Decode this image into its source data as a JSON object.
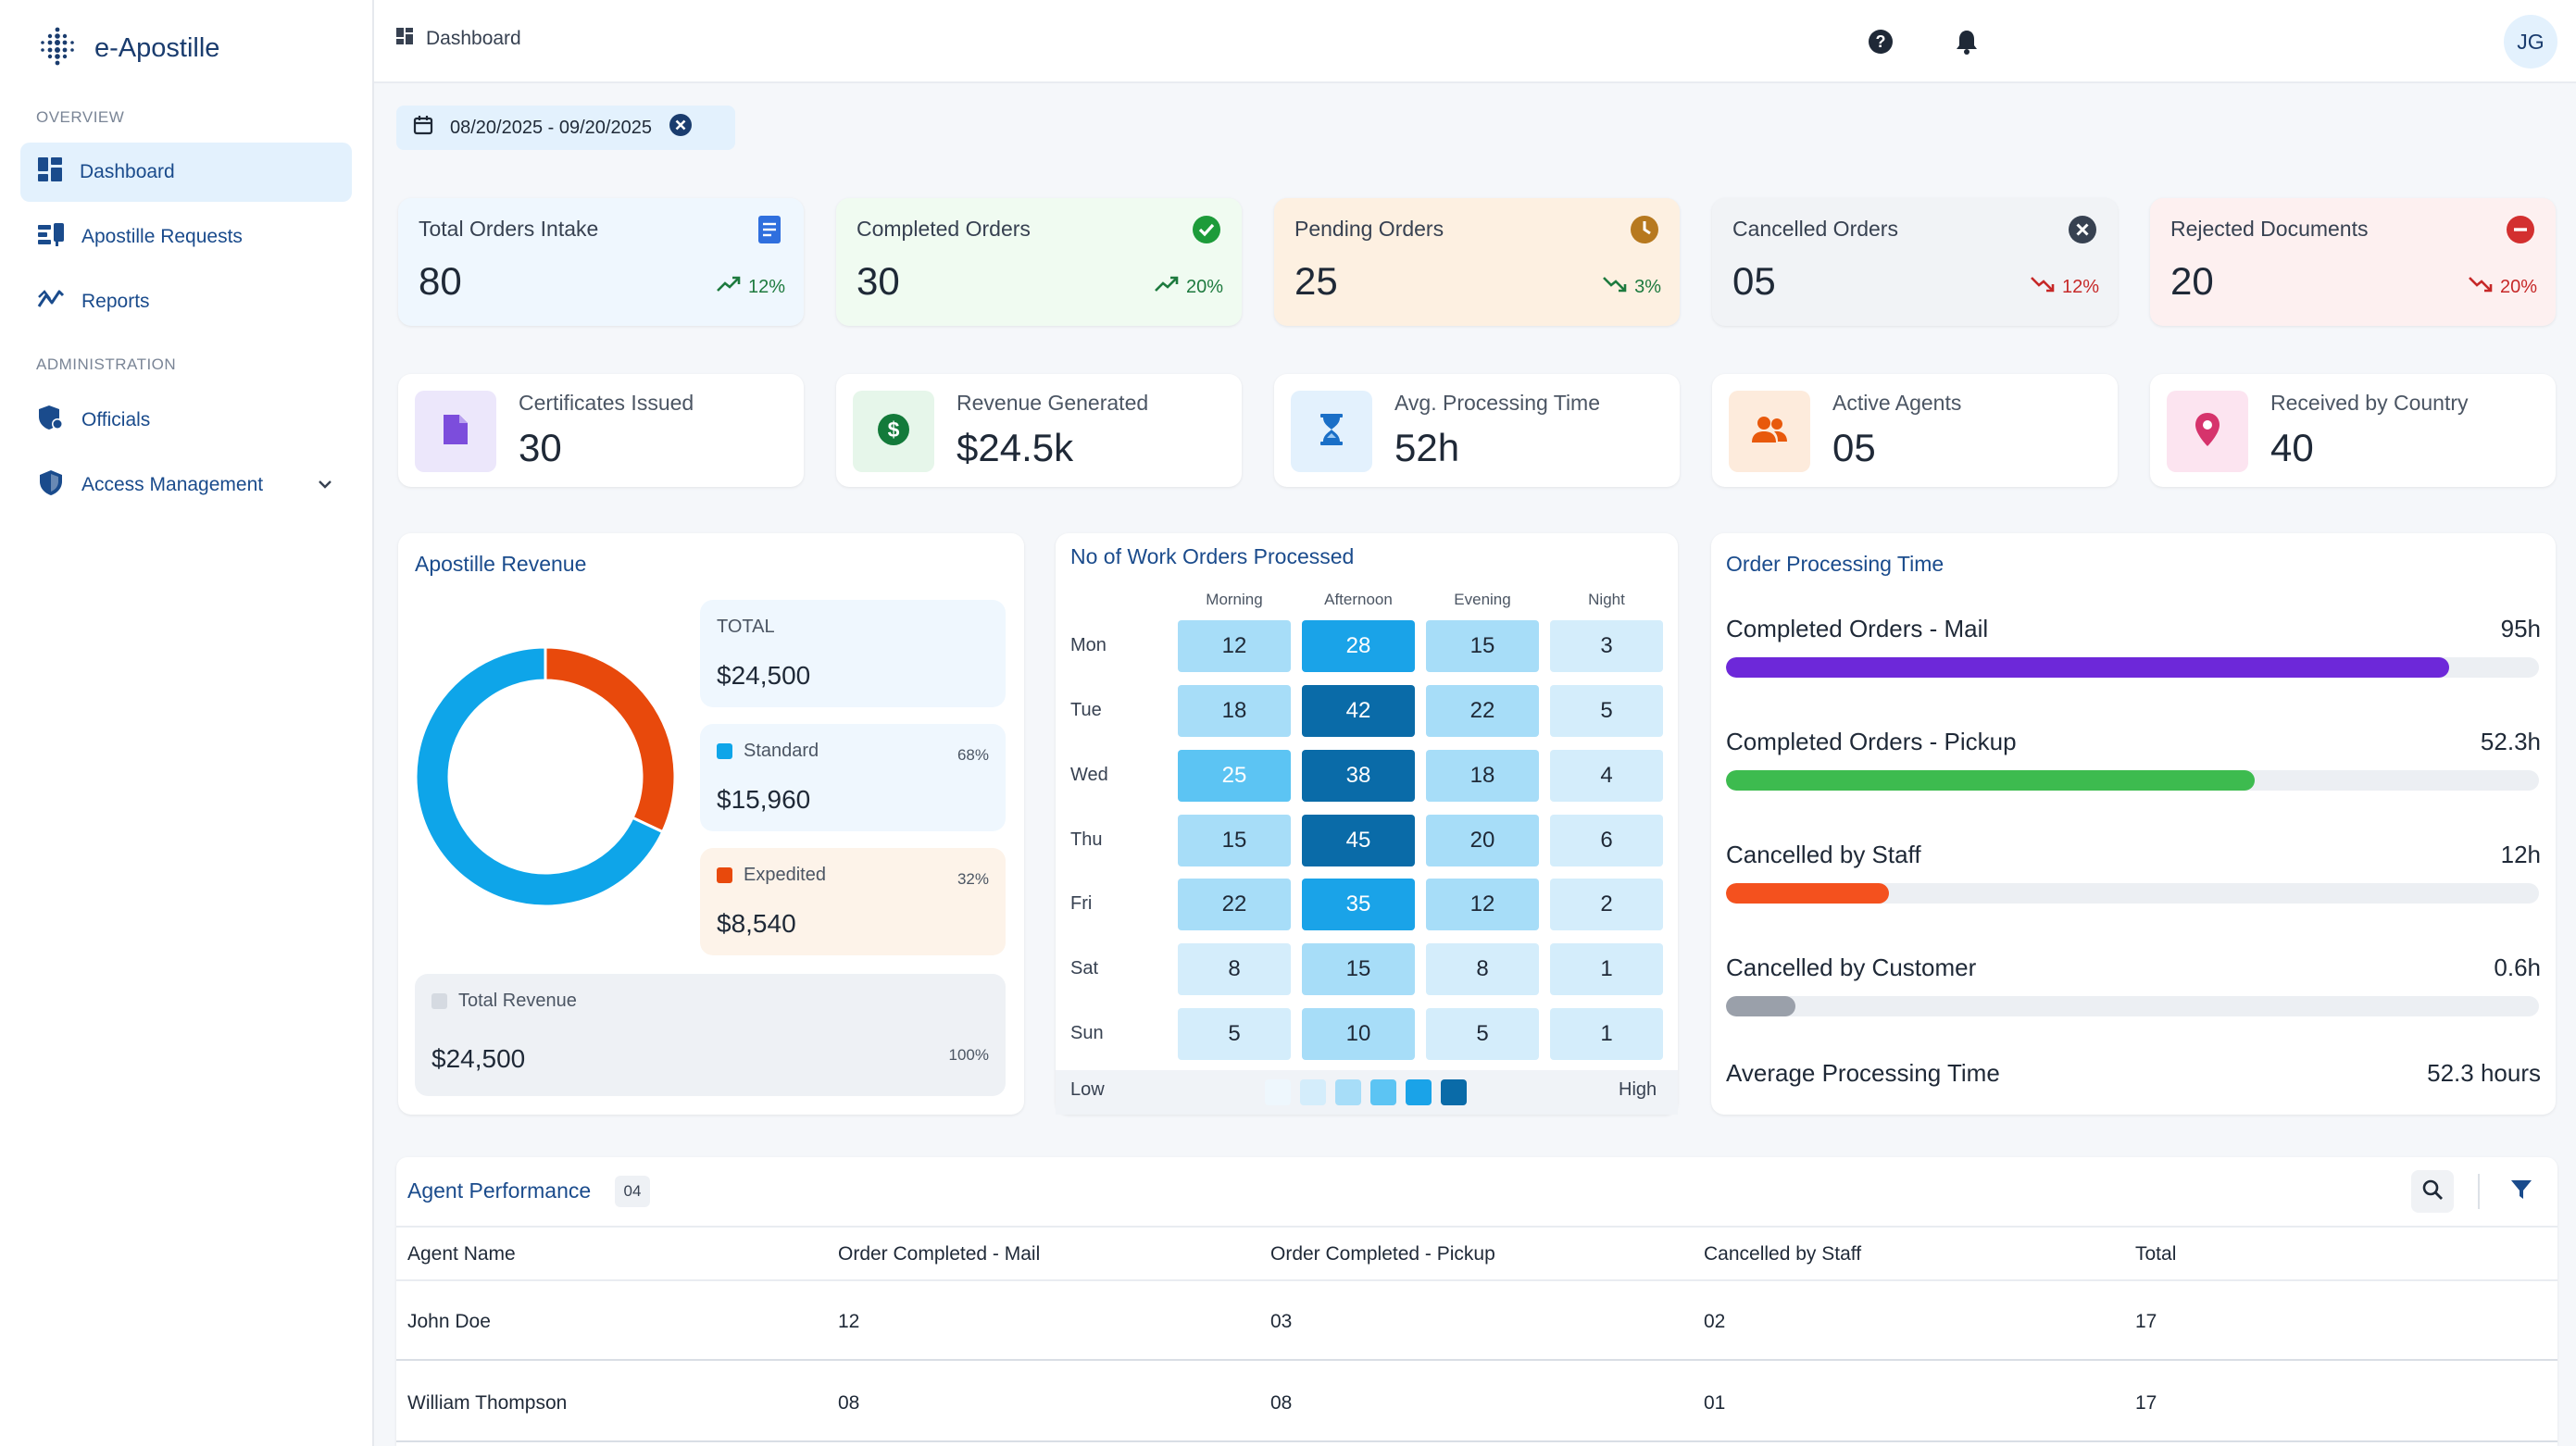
{
  "app": {
    "name": "e-Apostille"
  },
  "sidebar": {
    "sections": [
      {
        "label": "OVERVIEW"
      },
      {
        "label": "ADMINISTRATION"
      }
    ],
    "items": [
      {
        "label": "Dashboard",
        "icon": "dashboard-icon",
        "active": true
      },
      {
        "label": "Apostille Requests",
        "icon": "requests-icon"
      },
      {
        "label": "Reports",
        "icon": "reports-icon"
      },
      {
        "label": "Officials",
        "icon": "officials-icon"
      },
      {
        "label": "Access Management",
        "icon": "shield-icon"
      }
    ]
  },
  "topbar": {
    "breadcrumb": "Dashboard",
    "avatar_initials": "JG"
  },
  "date_range": "08/20/2025 - 09/20/2025",
  "stats": [
    {
      "label": "Total Orders Intake",
      "value": "80",
      "trend": "12%",
      "direction": "up",
      "bg": "#eff7fe",
      "icon_color": "#2f6fde"
    },
    {
      "label": "Completed Orders",
      "value": "30",
      "trend": "20%",
      "direction": "up",
      "bg": "#f0fbf1",
      "icon_color": "#1d9b3a"
    },
    {
      "label": "Pending Orders",
      "value": "25",
      "trend": "3%",
      "direction": "down-green",
      "bg": "#fdf0e1",
      "icon_color": "#b7791f"
    },
    {
      "label": "Cancelled Orders",
      "value": "05",
      "trend": "12%",
      "direction": "down",
      "bg": "#f1f3f6",
      "icon_color": "#374151"
    },
    {
      "label": "Rejected Documents",
      "value": "20",
      "trend": "20%",
      "direction": "down",
      "bg": "#fdf0f0",
      "icon_color": "#d32f2f"
    }
  ],
  "metrics": [
    {
      "label": "Certificates Issued",
      "value": "30",
      "tile_bg": "#ece7fb",
      "icon_color": "#7c4ddc",
      "icon": "document-icon"
    },
    {
      "label": "Revenue Generated",
      "value": "$24.5k",
      "tile_bg": "#e6f6ea",
      "icon_color": "#137a3a",
      "icon": "dollar-icon"
    },
    {
      "label": "Avg. Processing Time",
      "value": "52h",
      "tile_bg": "#e3f1fd",
      "icon_color": "#1a6fc7",
      "icon": "hourglass-icon"
    },
    {
      "label": "Active Agents",
      "value": "05",
      "tile_bg": "#fdebdc",
      "icon_color": "#e8590c",
      "icon": "agents-icon"
    },
    {
      "label": "Received by Country",
      "value": "40",
      "tile_bg": "#fce4f0",
      "icon_color": "#d6336c",
      "icon": "location-pin-icon"
    }
  ],
  "revenue": {
    "title": "Apostille Revenue",
    "total_label": "TOTAL",
    "total_value": "$24,500",
    "standard": {
      "label": "Standard",
      "value": "$15,960",
      "pct": "68%",
      "color": "#0ea5e9"
    },
    "expedited": {
      "label": "Expedited",
      "value": "$8,540",
      "pct": "32%",
      "color": "#e8490c"
    },
    "grand": {
      "label": "Total Revenue",
      "value": "$24,500",
      "pct": "100%"
    },
    "chart_data": {
      "type": "pie",
      "categories": [
        "Standard",
        "Expedited"
      ],
      "values": [
        68,
        32
      ]
    }
  },
  "heatmap": {
    "title": "No of Work Orders Processed",
    "columns": [
      "Morning",
      "Afternoon",
      "Evening",
      "Night"
    ],
    "rows": [
      "Mon",
      "Tue",
      "Wed",
      "Thu",
      "Fri",
      "Sat",
      "Sun"
    ],
    "values": [
      [
        12,
        28,
        15,
        3
      ],
      [
        18,
        42,
        22,
        5
      ],
      [
        25,
        38,
        18,
        4
      ],
      [
        15,
        45,
        20,
        6
      ],
      [
        22,
        35,
        12,
        2
      ],
      [
        8,
        15,
        8,
        1
      ],
      [
        5,
        10,
        5,
        1
      ]
    ],
    "legend_low": "Low",
    "legend_high": "High"
  },
  "processing": {
    "title": "Order Processing Time",
    "items": [
      {
        "label": "Completed Orders - Mail",
        "value": "95h",
        "fraction": 0.89,
        "color": "#6d28d9"
      },
      {
        "label": "Completed Orders - Pickup",
        "value": "52.3h",
        "fraction": 0.65,
        "color": "#3dbb4f"
      },
      {
        "label": "Cancelled by Staff",
        "value": "12h",
        "fraction": 0.2,
        "color": "#f4511e"
      },
      {
        "label": "Cancelled by Customer",
        "value": "0.6h",
        "fraction": 0.085,
        "color": "#9aa0aa"
      }
    ],
    "average_label": "Average Processing Time",
    "average_value": "52.3 hours"
  },
  "agents": {
    "title": "Agent Performance",
    "count": "04",
    "columns": [
      "Agent Name",
      "Order Completed - Mail",
      "Order Completed - Pickup",
      "Cancelled by Staff",
      "Total"
    ],
    "rows": [
      [
        "John Doe",
        "12",
        "03",
        "02",
        "17"
      ],
      [
        "William Thompson",
        "08",
        "08",
        "01",
        "17"
      ]
    ]
  }
}
